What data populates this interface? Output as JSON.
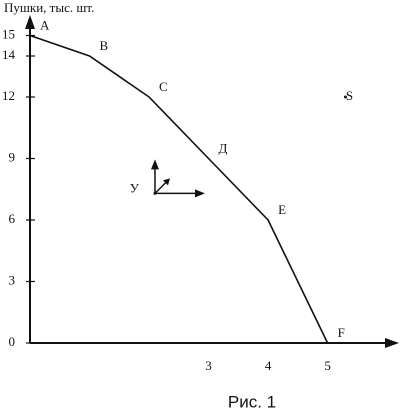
{
  "chart_data": {
    "type": "line",
    "y_label": "Пушки, тыс. шт.",
    "caption": "Рис. 1",
    "x": [
      0,
      1,
      2,
      3,
      4,
      5
    ],
    "values": [
      15,
      14,
      12,
      9,
      6,
      0
    ],
    "point_labels": [
      "A",
      "B",
      "C",
      "Д",
      "E",
      "F"
    ],
    "points": [
      {
        "label": "S",
        "x": 5.3,
        "y": 12
      },
      {
        "label": "У",
        "x": 2.1,
        "y": 7.3
      }
    ],
    "xlim": [
      0,
      6.2
    ],
    "ylim": [
      0,
      16
    ],
    "xticks": [
      3,
      4,
      5
    ],
    "yticks": [
      0,
      3,
      6,
      9,
      12,
      14,
      15
    ],
    "color": "#111"
  }
}
